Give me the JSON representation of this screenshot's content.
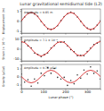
{
  "chart_data": [
    {
      "type": "line",
      "title": "Lunar gravitational semidiurnal tide (L2)",
      "y_label": "Displacement (m)",
      "annotation": "Amplitude = 0.85 m",
      "tick_labels": "y",
      "x": [
        0,
        15,
        30,
        45,
        60,
        75,
        90,
        105,
        120,
        135,
        150,
        165,
        180,
        195,
        210,
        225,
        240,
        255,
        270,
        285,
        300,
        315,
        330,
        345,
        360
      ],
      "xlim": [
        0,
        360
      ],
      "xticks": [
        0,
        100,
        200,
        300
      ],
      "ylim": [
        -1.2,
        1.2
      ],
      "yticks": [
        -1,
        0,
        1
      ],
      "series": [
        {
          "type": "scatter",
          "color": "#333333",
          "marker": "circle",
          "values": [
            0.05,
            0.4,
            0.78,
            0.82,
            0.7,
            0.47,
            -0.04,
            -0.4,
            -0.77,
            -0.83,
            -0.71,
            -0.46,
            0.03,
            0.45,
            0.72,
            0.88,
            0.76,
            0.4,
            -0.03,
            -0.45,
            -0.7,
            -0.86,
            -0.77,
            -0.41,
            0.02
          ]
        },
        {
          "type": "line",
          "color": "#d62728",
          "values": [
            0,
            0.43,
            0.74,
            0.85,
            0.74,
            0.43,
            0,
            -0.43,
            -0.74,
            -0.85,
            -0.74,
            -0.43,
            0,
            0.43,
            0.74,
            0.85,
            0.74,
            0.43,
            0,
            -0.43,
            -0.74,
            -0.85,
            -0.74,
            -0.43,
            0
          ]
        }
      ]
    },
    {
      "type": "line",
      "y_label": "Strain (× 10⁻⁸)",
      "annotation": "Amplitude = 7.1 × 10⁻⁸",
      "tick_labels": "y",
      "x": [
        0,
        15,
        30,
        45,
        60,
        75,
        90,
        105,
        120,
        135,
        150,
        165,
        180,
        195,
        210,
        225,
        240,
        255,
        270,
        285,
        300,
        315,
        330,
        345,
        360
      ],
      "xlim": [
        0,
        360
      ],
      "xticks": [
        0,
        100,
        200,
        300
      ],
      "ylim": [
        -12,
        12
      ],
      "yticks": [
        -10,
        0,
        10
      ],
      "series": [
        {
          "type": "scatter",
          "color": "#333333",
          "marker": "circle",
          "values": [
            6.6,
            6.8,
            3.0,
            0.9,
            -4.2,
            -5.6,
            -7.8,
            -5.7,
            -4.1,
            0.7,
            3.1,
            6.7,
            6.5,
            6.9,
            2.9,
            -0.8,
            -3.0,
            -6.8,
            -6.5,
            -6.9,
            -2.8,
            0.6,
            4.1,
            5.5,
            7.6
          ]
        },
        {
          "type": "line",
          "color": "#d62728",
          "values": [
            7.1,
            6.15,
            3.55,
            0,
            -3.55,
            -6.15,
            -7.1,
            -6.15,
            -3.55,
            0,
            3.55,
            6.15,
            7.1,
            6.15,
            3.55,
            0,
            -3.55,
            -6.15,
            -7.1,
            -6.15,
            -3.55,
            0,
            3.55,
            6.15,
            7.1
          ]
        }
      ]
    },
    {
      "type": "line",
      "y_label": "Gravity (μGal)",
      "annotation": "Amplitude = 0.78 μGal",
      "x_label": "Lunar phase (°)",
      "x": [
        0,
        15,
        30,
        45,
        60,
        75,
        90,
        105,
        120,
        135,
        150,
        165,
        180,
        195,
        210,
        225,
        240,
        255,
        270,
        285,
        300,
        315,
        330,
        345,
        360
      ],
      "xlim": [
        0,
        360
      ],
      "xticks": [
        0,
        100,
        200,
        300
      ],
      "ylim": [
        -1.5,
        1.5
      ],
      "yticks": [
        -1,
        0,
        1
      ],
      "series": [
        {
          "type": "scatter",
          "color": "#333333",
          "marker": "circle",
          "values": [
            0.3,
            -0.7,
            -0.4,
            -1.2,
            -0.3,
            -0.8,
            0.4,
            0.1,
            1.1,
            0.4,
            1.0,
            -0.1,
            -0.3,
            -0.1,
            -1.1,
            -0.5,
            -0.9,
            0.2,
            -0.2,
            0.8,
            0.3,
            1.2,
            0.4,
            0.7,
            -0.3
          ]
        },
        {
          "type": "line",
          "color": "#d62728",
          "values": [
            0,
            -0.39,
            -0.68,
            -0.78,
            -0.68,
            -0.39,
            0,
            0.39,
            0.68,
            0.78,
            0.68,
            0.39,
            0,
            -0.39,
            -0.68,
            -0.78,
            -0.68,
            -0.39,
            0,
            0.39,
            0.68,
            0.78,
            0.68,
            0.39,
            0
          ]
        }
      ]
    }
  ]
}
